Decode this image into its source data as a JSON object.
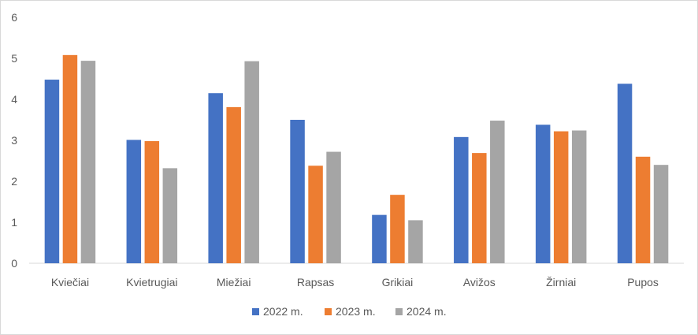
{
  "chart_data": {
    "type": "bar",
    "title": "",
    "xlabel": "",
    "ylabel": "",
    "ylim": [
      0,
      6
    ],
    "yticks": [
      0,
      1,
      2,
      3,
      4,
      5,
      6
    ],
    "grid": false,
    "legend_position": "bottom",
    "categories": [
      "Kviečiai",
      "Kvietrugiai",
      "Miežiai",
      "Rapsas",
      "Grikiai",
      "Avižos",
      "Žirniai",
      "Pupos"
    ],
    "series": [
      {
        "name": "2022 m.",
        "color": "#4472C4",
        "values": [
          4.48,
          3.01,
          4.15,
          3.5,
          1.18,
          3.08,
          3.38,
          4.38
        ]
      },
      {
        "name": "2023 m.",
        "color": "#ED7D31",
        "values": [
          5.08,
          2.98,
          3.81,
          2.38,
          1.67,
          2.69,
          3.22,
          2.6
        ]
      },
      {
        "name": "2024 m.",
        "color": "#A5A5A5",
        "values": [
          4.94,
          2.32,
          4.93,
          2.72,
          1.05,
          3.48,
          3.24,
          2.4
        ]
      }
    ]
  }
}
